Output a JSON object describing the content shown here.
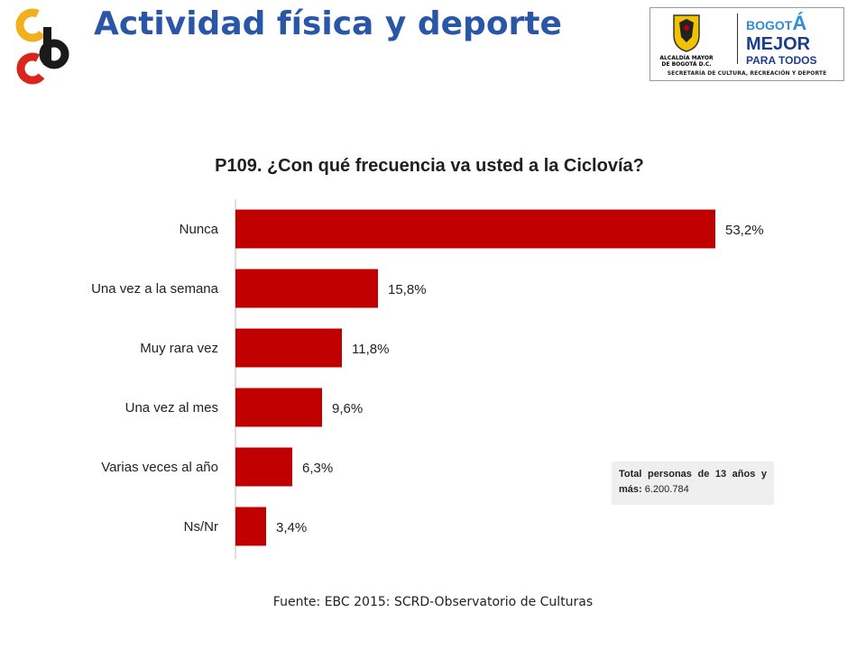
{
  "header": {
    "title": "Actividad física y deporte"
  },
  "logos": {
    "left": "ccb-logo",
    "right": {
      "alcaldia": "ALCALDÍA MAYOR DE BOGOTÁ D.C.",
      "bogota_small": "BOGOT",
      "bogota_big": "Á",
      "mejor": "MEJOR",
      "para_todos": "PARA TODOS",
      "secretaria": "SECRETARÍA DE CULTURA, RECREACIÓN Y DEPORTE"
    }
  },
  "chart_data": {
    "type": "bar",
    "orientation": "horizontal",
    "title": "P109. ¿Con qué frecuencia va usted a la Ciclovía?",
    "categories": [
      "Nunca",
      "Una vez a la semana",
      "Muy rara vez",
      "Una vez al mes",
      "Varias veces al año",
      "Ns/Nr"
    ],
    "values": [
      53.2,
      15.8,
      11.8,
      9.6,
      6.3,
      3.4
    ],
    "value_labels": [
      "53,2%",
      "15,8%",
      "11,8%",
      "9,6%",
      "6,3%",
      "3,4%"
    ],
    "unit": "%",
    "bar_color": "#c00000",
    "grid": false,
    "legend": "none"
  },
  "note": {
    "label": "Total personas de 13 años y más:",
    "value": "6.200.784"
  },
  "source": "Fuente: EBC 2015: SCRD-Observatorio de Culturas"
}
